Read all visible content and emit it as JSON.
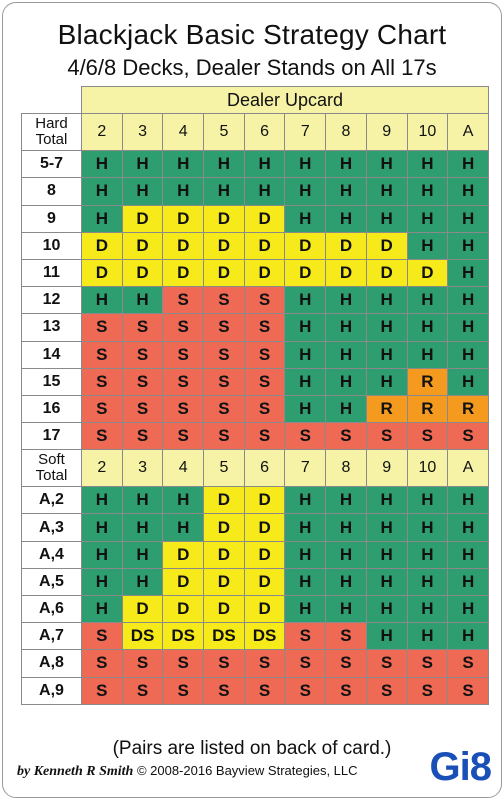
{
  "title": "Blackjack Basic Strategy Chart",
  "subtitle": "4/6/8 Decks, Dealer Stands on All 17s",
  "dealer_header": "Dealer Upcard",
  "upcards": [
    "2",
    "3",
    "4",
    "5",
    "6",
    "7",
    "8",
    "9",
    "10",
    "A"
  ],
  "hard": {
    "label": "Hard Total",
    "rows": [
      {
        "hand": "5-7",
        "actions": [
          "H",
          "H",
          "H",
          "H",
          "H",
          "H",
          "H",
          "H",
          "H",
          "H"
        ]
      },
      {
        "hand": "8",
        "actions": [
          "H",
          "H",
          "H",
          "H",
          "H",
          "H",
          "H",
          "H",
          "H",
          "H"
        ]
      },
      {
        "hand": "9",
        "actions": [
          "H",
          "D",
          "D",
          "D",
          "D",
          "H",
          "H",
          "H",
          "H",
          "H"
        ]
      },
      {
        "hand": "10",
        "actions": [
          "D",
          "D",
          "D",
          "D",
          "D",
          "D",
          "D",
          "D",
          "H",
          "H"
        ]
      },
      {
        "hand": "11",
        "actions": [
          "D",
          "D",
          "D",
          "D",
          "D",
          "D",
          "D",
          "D",
          "D",
          "H"
        ]
      },
      {
        "hand": "12",
        "actions": [
          "H",
          "H",
          "S",
          "S",
          "S",
          "H",
          "H",
          "H",
          "H",
          "H"
        ]
      },
      {
        "hand": "13",
        "actions": [
          "S",
          "S",
          "S",
          "S",
          "S",
          "H",
          "H",
          "H",
          "H",
          "H"
        ]
      },
      {
        "hand": "14",
        "actions": [
          "S",
          "S",
          "S",
          "S",
          "S",
          "H",
          "H",
          "H",
          "H",
          "H"
        ]
      },
      {
        "hand": "15",
        "actions": [
          "S",
          "S",
          "S",
          "S",
          "S",
          "H",
          "H",
          "H",
          "R",
          "H"
        ]
      },
      {
        "hand": "16",
        "actions": [
          "S",
          "S",
          "S",
          "S",
          "S",
          "H",
          "H",
          "R",
          "R",
          "R"
        ]
      },
      {
        "hand": "17",
        "actions": [
          "S",
          "S",
          "S",
          "S",
          "S",
          "S",
          "S",
          "S",
          "S",
          "S"
        ]
      }
    ]
  },
  "soft": {
    "label": "Soft Total",
    "rows": [
      {
        "hand": "A,2",
        "actions": [
          "H",
          "H",
          "H",
          "D",
          "D",
          "H",
          "H",
          "H",
          "H",
          "H"
        ]
      },
      {
        "hand": "A,3",
        "actions": [
          "H",
          "H",
          "H",
          "D",
          "D",
          "H",
          "H",
          "H",
          "H",
          "H"
        ]
      },
      {
        "hand": "A,4",
        "actions": [
          "H",
          "H",
          "D",
          "D",
          "D",
          "H",
          "H",
          "H",
          "H",
          "H"
        ]
      },
      {
        "hand": "A,5",
        "actions": [
          "H",
          "H",
          "D",
          "D",
          "D",
          "H",
          "H",
          "H",
          "H",
          "H"
        ]
      },
      {
        "hand": "A,6",
        "actions": [
          "H",
          "D",
          "D",
          "D",
          "D",
          "H",
          "H",
          "H",
          "H",
          "H"
        ]
      },
      {
        "hand": "A,7",
        "actions": [
          "S",
          "DS",
          "DS",
          "DS",
          "DS",
          "S",
          "S",
          "H",
          "H",
          "H"
        ]
      },
      {
        "hand": "A,8",
        "actions": [
          "S",
          "S",
          "S",
          "S",
          "S",
          "S",
          "S",
          "S",
          "S",
          "S"
        ]
      },
      {
        "hand": "A,9",
        "actions": [
          "S",
          "S",
          "S",
          "S",
          "S",
          "S",
          "S",
          "S",
          "S",
          "S"
        ]
      }
    ]
  },
  "colors": {
    "H": "#2e9d6f",
    "S": "#ef6a55",
    "D": "#f7ea1a",
    "R": "#f49a1e",
    "DS": "#f7ea1a",
    "header": "#f6f3a6"
  },
  "footer_note": "(Pairs are listed on back of card.)",
  "credit_author": "by Kenneth R Smith",
  "credit_copyright": "© 2008-2016 Bayview Strategies, LLC",
  "logo_text": "Gi8"
}
